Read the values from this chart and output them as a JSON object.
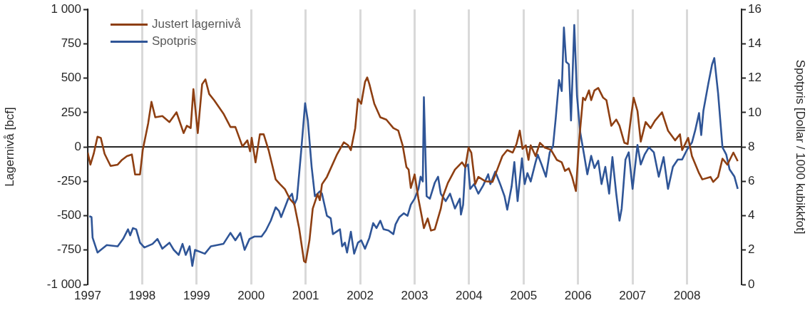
{
  "chart_data": {
    "type": "line",
    "xlabel": null,
    "ylabel": "Lagernivå [bcf]",
    "y2label": "Spotpris [Dollar / 1000 kubikkfot]",
    "xlim": [
      1997,
      2009
    ],
    "xticks": [
      1997,
      1998,
      1999,
      2000,
      2001,
      2002,
      2003,
      2004,
      2005,
      2006,
      2007,
      2008
    ],
    "ylim": [
      -1000,
      1000
    ],
    "yticks": [
      {
        "value": -1000,
        "label": "-1 000"
      },
      -750,
      -500,
      -250,
      0,
      250,
      500,
      750,
      {
        "value": 1000,
        "label": "1 000"
      }
    ],
    "y2lim": [
      0,
      16
    ],
    "y2ticks": [
      0,
      2,
      4,
      6,
      8,
      10,
      12,
      14,
      16
    ],
    "grid": "x",
    "legend": "top left",
    "ref_lines": [
      {
        "axis": "y",
        "value": 0,
        "color": "#262626"
      }
    ],
    "series": [
      {
        "name": "Justert lagernivå",
        "color": "#8e3f12",
        "axis": "y",
        "x": [
          1997.0,
          1997.05,
          1997.11,
          1997.18,
          1997.24,
          1997.31,
          1997.42,
          1997.55,
          1997.63,
          1997.72,
          1997.81,
          1997.87,
          1997.96,
          1998.01,
          1998.11,
          1998.17,
          1998.24,
          1998.37,
          1998.5,
          1998.63,
          1998.76,
          1998.82,
          1998.89,
          1998.94,
          1999.02,
          1999.1,
          1999.16,
          1999.23,
          1999.32,
          1999.49,
          1999.62,
          1999.71,
          1999.84,
          1999.93,
          1999.98,
          2000.01,
          2000.08,
          2000.16,
          2000.23,
          2000.32,
          2000.45,
          2000.53,
          2000.62,
          2000.71,
          2000.79,
          2000.88,
          2000.97,
          2001.0,
          2001.07,
          2001.13,
          2001.22,
          2001.26,
          2001.3,
          2001.39,
          2001.57,
          2001.7,
          2001.78,
          2001.83,
          2001.91,
          2001.96,
          2002.02,
          2002.09,
          2002.13,
          2002.17,
          2002.26,
          2002.37,
          2002.48,
          2002.61,
          2002.7,
          2002.78,
          2002.85,
          2002.89,
          2002.93,
          2003.0,
          2003.07,
          2003.13,
          2003.17,
          2003.24,
          2003.3,
          2003.37,
          2003.48,
          2003.52,
          2003.61,
          2003.74,
          2003.87,
          2003.93,
          2003.99,
          2004.04,
          2004.11,
          2004.17,
          2004.3,
          2004.43,
          2004.61,
          2004.7,
          2004.8,
          2004.87,
          2004.93,
          2004.98,
          2005.04,
          2005.09,
          2005.13,
          2005.22,
          2005.3,
          2005.39,
          2005.5,
          2005.61,
          2005.7,
          2005.76,
          2005.83,
          2005.89,
          2005.96,
          2006.02,
          2006.09,
          2006.13,
          2006.2,
          2006.24,
          2006.3,
          2006.37,
          2006.46,
          2006.52,
          2006.61,
          2006.7,
          2006.76,
          2006.85,
          2006.91,
          2006.98,
          2007.02,
          2007.09,
          2007.15,
          2007.24,
          2007.33,
          2007.41,
          2007.54,
          2007.65,
          2007.78,
          2007.87,
          2007.91,
          2008.02,
          2008.09,
          2008.22,
          2008.28,
          2008.43,
          2008.48,
          2008.57,
          2008.65,
          2008.74,
          2008.85,
          2008.93
        ],
        "values": [
          -41,
          -129,
          -50,
          74,
          66,
          -50,
          -138,
          -129,
          -94,
          -67,
          -55,
          -200,
          -200,
          -23,
          172,
          328,
          216,
          225,
          181,
          252,
          101,
          154,
          137,
          420,
          101,
          456,
          491,
          385,
          340,
          243,
          145,
          145,
          4,
          48,
          -32,
          66,
          -112,
          92,
          92,
          -23,
          -236,
          -271,
          -307,
          -378,
          -413,
          -590,
          -830,
          -839,
          -679,
          -449,
          -342,
          -387,
          -271,
          -218,
          -59,
          34,
          12,
          -23,
          137,
          349,
          314,
          473,
          505,
          456,
          314,
          216,
          199,
          137,
          119,
          12,
          -147,
          -165,
          -298,
          -200,
          -378,
          -502,
          -590,
          -520,
          -608,
          -599,
          -449,
          -360,
          -262,
          -165,
          -112,
          -147,
          -5,
          -41,
          -271,
          -218,
          -250,
          -254,
          -67,
          -23,
          -41,
          21,
          119,
          -14,
          12,
          -94,
          12,
          -67,
          30,
          -5,
          -20,
          -94,
          -112,
          -174,
          -156,
          -218,
          -321,
          48,
          358,
          340,
          411,
          340,
          411,
          429,
          358,
          340,
          154,
          199,
          154,
          30,
          21,
          243,
          358,
          261,
          39,
          181,
          137,
          190,
          252,
          119,
          48,
          92,
          -23,
          66,
          -67,
          -191,
          -236,
          -218,
          -254,
          -218,
          -85,
          -129,
          -41,
          -103
        ]
      },
      {
        "name": "Spotpris",
        "color": "#2f5597",
        "axis": "y2",
        "x": [
          1997.03,
          1997.07,
          1997.09,
          1997.18,
          1997.24,
          1997.35,
          1997.55,
          1997.65,
          1997.74,
          1997.78,
          1997.83,
          1997.89,
          1997.96,
          1998.04,
          1998.19,
          1998.28,
          1998.37,
          1998.5,
          1998.58,
          1998.67,
          1998.74,
          1998.8,
          1998.87,
          1998.92,
          1998.97,
          1999.15,
          1999.26,
          1999.49,
          1999.62,
          1999.71,
          1999.8,
          1999.88,
          1999.97,
          2000.06,
          2000.19,
          2000.27,
          2000.36,
          2000.45,
          2000.51,
          2000.55,
          2000.62,
          2000.68,
          2000.75,
          2000.79,
          2000.84,
          2000.88,
          2000.92,
          2000.99,
          2001.04,
          2001.11,
          2001.17,
          2001.26,
          2001.3,
          2001.39,
          2001.46,
          2001.5,
          2001.63,
          2001.67,
          2001.72,
          2001.76,
          2001.83,
          2001.89,
          2001.96,
          2002.02,
          2002.09,
          2002.17,
          2002.24,
          2002.3,
          2002.37,
          2002.43,
          2002.52,
          2002.61,
          2002.65,
          2002.72,
          2002.8,
          2002.87,
          2002.93,
          2003.0,
          2003.07,
          2003.11,
          2003.15,
          2003.17,
          2003.22,
          2003.28,
          2003.37,
          2003.43,
          2003.48,
          2003.57,
          2003.65,
          2003.74,
          2003.83,
          2003.85,
          2003.89,
          2003.93,
          2003.98,
          2004.02,
          2004.09,
          2004.17,
          2004.26,
          2004.35,
          2004.39,
          2004.48,
          2004.57,
          2004.65,
          2004.7,
          2004.78,
          2004.83,
          2004.89,
          2004.97,
          2005.02,
          2005.07,
          2005.13,
          2005.22,
          2005.26,
          2005.33,
          2005.41,
          2005.48,
          2005.54,
          2005.59,
          2005.65,
          2005.7,
          2005.74,
          2005.78,
          2005.83,
          2005.87,
          2005.93,
          2005.98,
          2006.04,
          2006.11,
          2006.17,
          2006.24,
          2006.3,
          2006.37,
          2006.43,
          2006.5,
          2006.57,
          2006.63,
          2006.7,
          2006.76,
          2006.8,
          2006.87,
          2006.93,
          2007.0,
          2007.09,
          2007.15,
          2007.22,
          2007.3,
          2007.39,
          2007.48,
          2007.57,
          2007.65,
          2007.74,
          2007.83,
          2007.91,
          2008.0,
          2008.09,
          2008.15,
          2008.22,
          2008.26,
          2008.3,
          2008.39,
          2008.46,
          2008.5,
          2008.57,
          2008.65,
          2008.72,
          2008.78,
          2008.87,
          2008.93
        ],
        "values": [
          3.97,
          3.92,
          2.72,
          1.86,
          2.01,
          2.29,
          2.22,
          2.65,
          3.21,
          2.86,
          3.28,
          3.21,
          2.43,
          2.15,
          2.36,
          2.65,
          2.08,
          2.43,
          2.01,
          1.72,
          2.36,
          1.72,
          2.22,
          1.08,
          2.01,
          1.79,
          2.22,
          2.36,
          3.0,
          2.57,
          3.0,
          2.01,
          2.65,
          2.79,
          2.79,
          3.14,
          3.71,
          4.49,
          4.28,
          3.92,
          4.49,
          4.99,
          5.28,
          4.64,
          4.99,
          6.41,
          7.84,
          10.54,
          9.54,
          6.84,
          5.13,
          5.42,
          5.28,
          4.0,
          3.85,
          2.93,
          3.21,
          2.22,
          2.43,
          1.86,
          3.07,
          1.79,
          2.43,
          2.57,
          2.08,
          2.72,
          3.57,
          3.28,
          3.71,
          3.21,
          3.14,
          2.93,
          3.5,
          3.92,
          4.14,
          4.0,
          4.64,
          4.99,
          5.56,
          6.27,
          5.99,
          10.89,
          5.13,
          4.99,
          5.92,
          6.27,
          5.28,
          4.85,
          5.28,
          4.42,
          4.99,
          4.07,
          4.64,
          6.84,
          6.98,
          5.56,
          5.84,
          5.28,
          5.77,
          6.41,
          5.84,
          6.56,
          5.84,
          5.13,
          4.35,
          5.7,
          7.12,
          4.85,
          7.34,
          5.84,
          6.48,
          5.99,
          7.12,
          7.55,
          6.98,
          6.27,
          7.69,
          8.05,
          9.68,
          11.89,
          11.25,
          14.95,
          12.95,
          12.81,
          9.54,
          15.09,
          10.96,
          8.83,
          7.55,
          6.41,
          7.48,
          6.77,
          7.2,
          5.84,
          6.84,
          5.28,
          7.41,
          5.28,
          3.71,
          4.42,
          7.27,
          7.69,
          5.56,
          8.12,
          6.98,
          7.55,
          7.98,
          7.69,
          6.27,
          7.41,
          5.56,
          6.84,
          7.27,
          7.27,
          7.84,
          8.26,
          8.97,
          9.97,
          8.69,
          10.11,
          11.68,
          12.81,
          13.17,
          11.11,
          7.98,
          7.55,
          6.7,
          6.27,
          5.56
        ]
      }
    ]
  }
}
